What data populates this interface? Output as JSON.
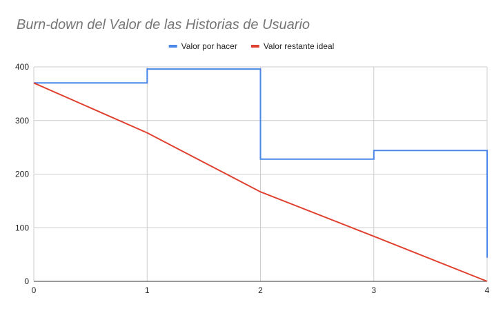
{
  "chart_data": {
    "type": "line",
    "title": "Burn-down del Valor de las Historias de Usuario",
    "xlabel": "",
    "ylabel": "",
    "xlim": [
      0,
      4
    ],
    "ylim": [
      0,
      400
    ],
    "x_ticks": [
      0,
      1,
      2,
      3,
      4
    ],
    "y_ticks": [
      0,
      100,
      200,
      300,
      400
    ],
    "grid": true,
    "legend_position": "top-center",
    "series": [
      {
        "name": "Valor por hacer",
        "color": "#4a86e8",
        "line_style": "step",
        "points": [
          [
            0,
            370
          ],
          [
            1,
            370
          ],
          [
            1,
            396
          ],
          [
            2,
            396
          ],
          [
            2,
            228
          ],
          [
            3,
            228
          ],
          [
            3,
            244
          ],
          [
            4,
            244
          ],
          [
            4,
            44
          ]
        ]
      },
      {
        "name": "Valor restante ideal",
        "color": "#e0402f",
        "line_style": "straight",
        "points": [
          [
            0,
            370
          ],
          [
            1,
            277
          ],
          [
            2,
            167
          ],
          [
            3,
            84
          ],
          [
            4,
            0
          ]
        ]
      }
    ]
  }
}
